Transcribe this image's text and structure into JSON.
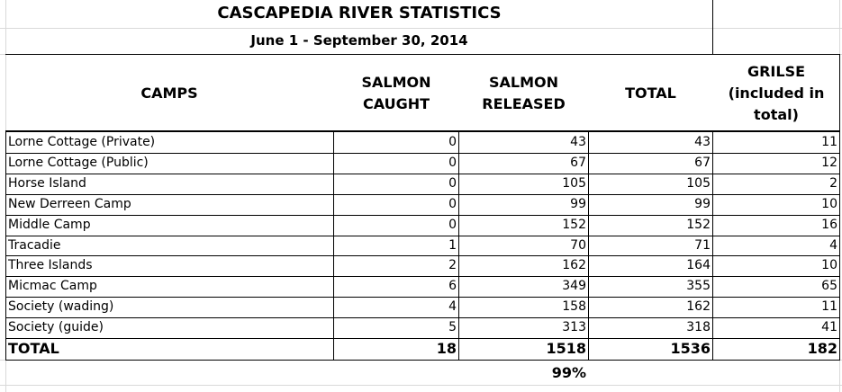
{
  "title": "CASCAPEDIA RIVER STATISTICS",
  "subtitle": "June 1 - September 30, 2014",
  "headers": {
    "camps": "CAMPS",
    "caught": [
      "SALMON",
      "CAUGHT"
    ],
    "released": [
      "SALMON",
      "RELEASED"
    ],
    "total": "TOTAL",
    "grilse": [
      "GRILSE",
      "(included in",
      "total)"
    ]
  },
  "rows": [
    {
      "camp": "Lorne Cottage (Private)",
      "caught": "0",
      "released": "43",
      "total": "43",
      "grilse": "11"
    },
    {
      "camp": "Lorne Cottage (Public)",
      "caught": "0",
      "released": "67",
      "total": "67",
      "grilse": "12"
    },
    {
      "camp": "Horse Island",
      "caught": "0",
      "released": "105",
      "total": "105",
      "grilse": "2"
    },
    {
      "camp": "New Derreen Camp",
      "caught": "0",
      "released": "99",
      "total": "99",
      "grilse": "10"
    },
    {
      "camp": "Middle Camp",
      "caught": "0",
      "released": "152",
      "total": "152",
      "grilse": "16"
    },
    {
      "camp": "Tracadie",
      "caught": "1",
      "released": "70",
      "total": "71",
      "grilse": "4"
    },
    {
      "camp": "Three Islands",
      "caught": "2",
      "released": "162",
      "total": "164",
      "grilse": "10"
    },
    {
      "camp": "Micmac Camp",
      "caught": "6",
      "released": "349",
      "total": "355",
      "grilse": "65"
    },
    {
      "camp": "Society (wading)",
      "caught": "4",
      "released": "158",
      "total": "162",
      "grilse": "11"
    },
    {
      "camp": "Society (guide)",
      "caught": "5",
      "released": "313",
      "total": "318",
      "grilse": "41"
    }
  ],
  "totals": {
    "label": "TOTAL",
    "caught": "18",
    "released": "1518",
    "total": "1536",
    "grilse": "182"
  },
  "released_percent": "99%"
}
